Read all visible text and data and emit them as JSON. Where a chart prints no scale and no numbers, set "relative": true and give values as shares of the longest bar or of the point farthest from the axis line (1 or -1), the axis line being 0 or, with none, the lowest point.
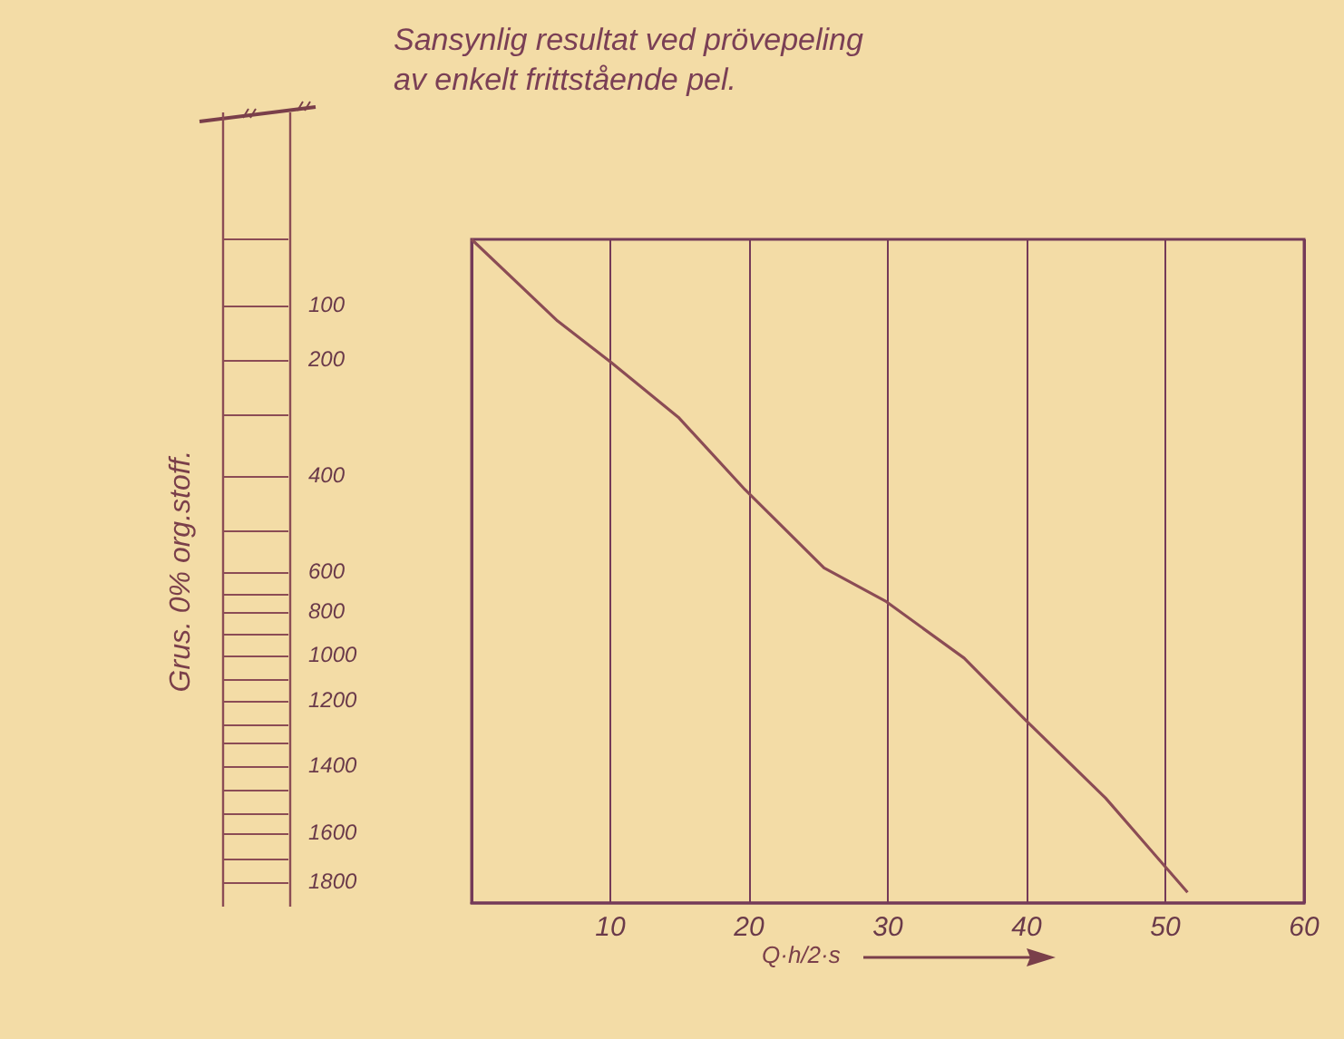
{
  "chart_data": {
    "type": "line",
    "title": "Sansynlig resultat ved prövepeling\nav enkelt frittstående pel.",
    "xlabel": "Q·h/2·s",
    "x": [
      0,
      6.2,
      10.1,
      14.9,
      19.7,
      25.4,
      29.9,
      35.5,
      39.9,
      45.7,
      51.6
    ],
    "series": [
      {
        "color": "#8b4c55",
        "values": [
          1,
          0.877,
          0.814,
          0.732,
          0.623,
          0.505,
          0.454,
          0.369,
          0.276,
          0.158,
          0.016
        ]
      }
    ],
    "relative": true,
    "xlim": [
      0,
      60
    ],
    "xticks": [
      {
        "value": 0,
        "label": null
      },
      10,
      20,
      30,
      40,
      50,
      60
    ],
    "annotations": [
      "100",
      "200",
      "400",
      "600",
      "800",
      "1000",
      "1200",
      "1400",
      "1600",
      "1800",
      "Grus. 0% org.stoff."
    ],
    "grid": "x"
  }
}
